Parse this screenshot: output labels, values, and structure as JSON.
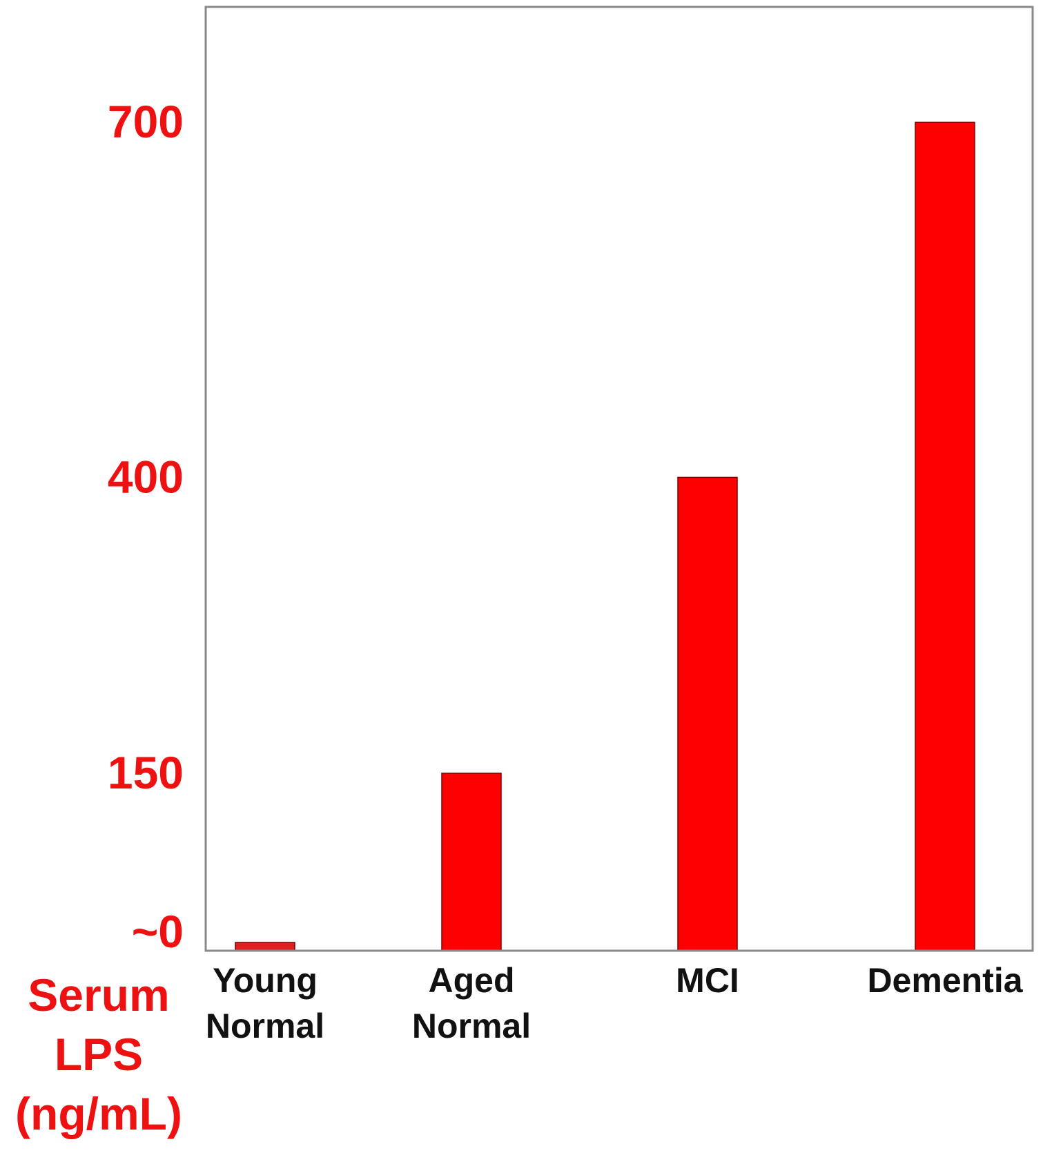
{
  "chart_data": {
    "type": "bar",
    "categories": [
      [
        "Young",
        "Normal"
      ],
      [
        "Aged",
        "Normal"
      ],
      [
        "MCI"
      ],
      [
        "Dementia"
      ]
    ],
    "values": [
      0,
      150,
      400,
      700
    ],
    "ylabel": [
      "Serum",
      "LPS",
      "(ng/mL)"
    ],
    "yticks": [
      {
        "value": 0,
        "label": "~0"
      },
      {
        "value": 150,
        "label": "150"
      },
      {
        "value": 400,
        "label": "400"
      },
      {
        "value": 700,
        "label": "700"
      }
    ],
    "ylim": [
      0,
      800
    ],
    "grid": false,
    "legend": "none",
    "colors": {
      "bar": "#ff0000",
      "young_bar": "#e02020",
      "axis_text": "#ee1111",
      "category_text": "#111111",
      "frame": "#8a8a8a"
    }
  }
}
